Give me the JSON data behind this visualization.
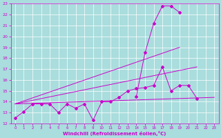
{
  "xlabel": "Windchill (Refroidissement éolien,°C)",
  "bg_color": "#aadddd",
  "line_color": "#cc00cc",
  "grid_color": "#ffffff",
  "xmin": 0,
  "xmax": 23,
  "ymin": 12,
  "ymax": 23,
  "s1_x": [
    0,
    1,
    2,
    3,
    4,
    5,
    6,
    7,
    8,
    9,
    10,
    11,
    12,
    13,
    14,
    15,
    16,
    17,
    18,
    19,
    20,
    21
  ],
  "s1_y": [
    12.5,
    13.1,
    13.8,
    13.8,
    13.8,
    13.0,
    13.8,
    13.4,
    13.8,
    12.3,
    14.0,
    14.0,
    14.4,
    15.0,
    15.2,
    15.3,
    15.5,
    17.2,
    15.0,
    15.5,
    15.5,
    14.3
  ],
  "s2_x": [
    14,
    15,
    16,
    17,
    18,
    19
  ],
  "s2_y": [
    14.5,
    18.5,
    21.2,
    22.8,
    22.8,
    22.2
  ],
  "line1_x": [
    0,
    23
  ],
  "line1_y": [
    13.8,
    14.4
  ],
  "line2_x": [
    0,
    19
  ],
  "line2_y": [
    13.8,
    19.0
  ],
  "line3_x": [
    0,
    21
  ],
  "line3_y": [
    13.8,
    17.2
  ]
}
